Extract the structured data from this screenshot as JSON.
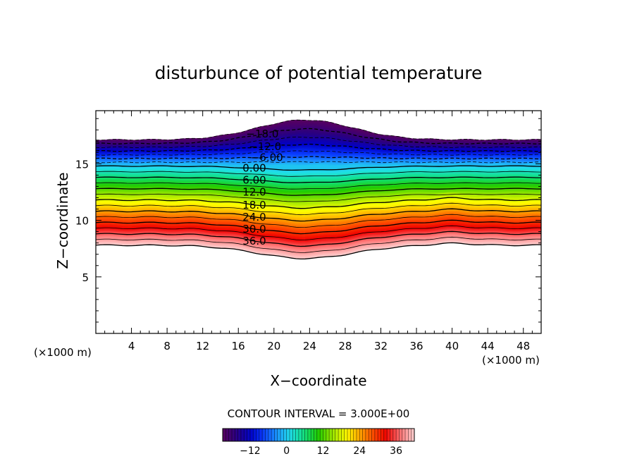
{
  "chart_data": {
    "type": "contour",
    "title": "disturbunce of potential temperature",
    "xlabel": "X−coordinate",
    "ylabel": "Z−coordinate",
    "x_unit": "(×1000 m)",
    "y_unit": "(×1000 m)",
    "xlim": [
      0,
      50
    ],
    "ylim": [
      0,
      19.7
    ],
    "x_ticks": [
      4,
      8,
      12,
      16,
      20,
      24,
      28,
      32,
      36,
      40,
      44,
      48
    ],
    "x_tick_labels": [
      "4",
      "8",
      "12",
      "16",
      "20",
      "24",
      "28",
      "32",
      "36",
      "40",
      "44",
      "48"
    ],
    "y_ticks": [
      5,
      10,
      15
    ],
    "y_tick_labels": [
      "5",
      "10",
      "15"
    ],
    "contour_interval_text": "CONTOUR INTERVAL = 3.000E+00",
    "contour_interval": 3.0,
    "level_min": -21,
    "level_max": 42,
    "contour_labels": [
      {
        "text": "−18.0",
        "value": -18,
        "x": 18.7
      },
      {
        "text": "−12.0",
        "value": -12,
        "x": 19.0
      },
      {
        "text": "−6.00",
        "value": -6,
        "x": 19.2
      },
      {
        "text": "0.00",
        "value": 0,
        "x": 17.8
      },
      {
        "text": "6.00",
        "value": 6,
        "x": 17.8
      },
      {
        "text": "12.0",
        "value": 12,
        "x": 17.8
      },
      {
        "text": "18.0",
        "value": 18,
        "x": 17.8
      },
      {
        "text": "24.0",
        "value": 24,
        "x": 17.8
      },
      {
        "text": "30.0",
        "value": 30,
        "x": 17.8
      },
      {
        "text": "36.0",
        "value": 36,
        "x": 17.8
      }
    ],
    "colorbar": {
      "min": -21,
      "max": 42,
      "tick_values": [
        -12,
        0,
        12,
        24,
        36
      ],
      "tick_labels": [
        "−12",
        "0",
        "12",
        "24",
        "36"
      ]
    },
    "colors": {
      "palette": [
        "#580060",
        "#2a0080",
        "#0000c8",
        "#0a3cff",
        "#1e9bff",
        "#20e0e6",
        "#10e07a",
        "#22cc00",
        "#9ae600",
        "#ffff00",
        "#ffa800",
        "#ff4a00",
        "#f00000",
        "#ff7a7a",
        "#ffd0d0"
      ]
    }
  }
}
